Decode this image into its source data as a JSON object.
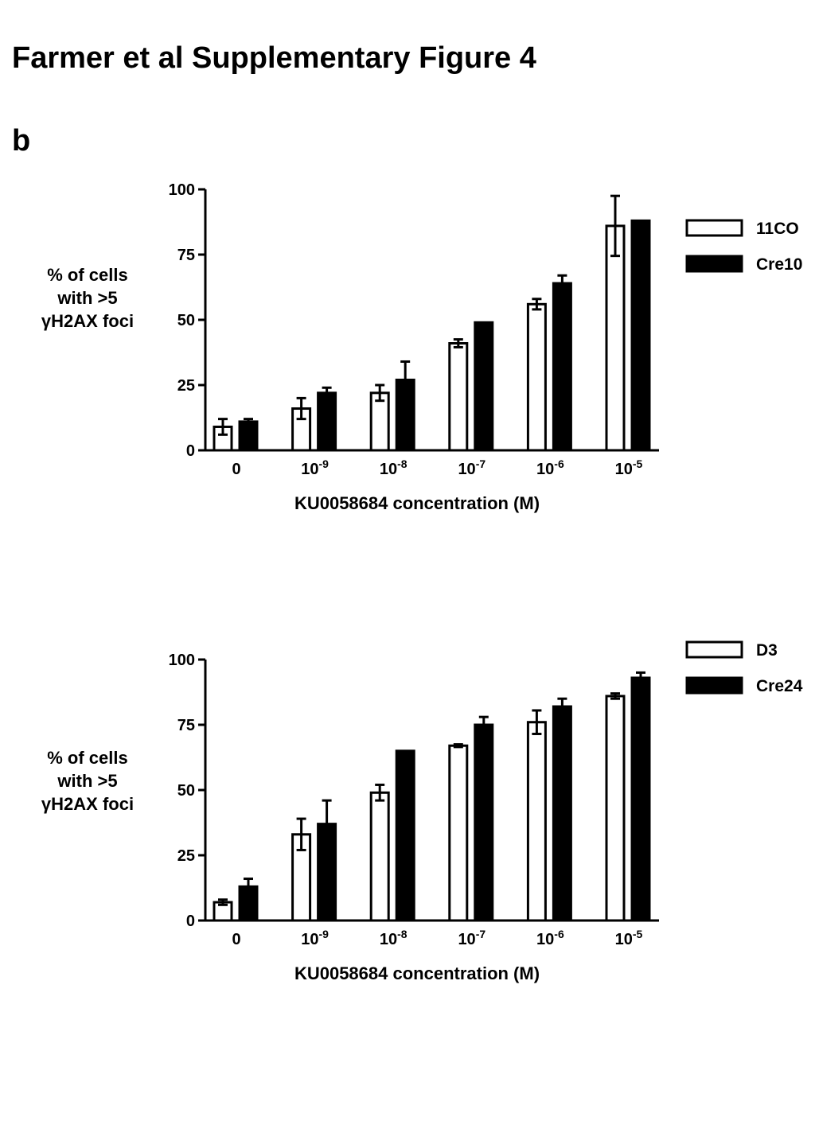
{
  "header": {
    "title": "Farmer et al Supplementary Figure 4",
    "panel_label": "b"
  },
  "chart_data": [
    {
      "type": "bar",
      "title": "",
      "xlabel": "KU0058684 concentration (M)",
      "ylabel_lines": [
        "% of cells",
        "with >5",
        "γH2AX foci"
      ],
      "ylim": [
        0,
        100
      ],
      "yticks": [
        0,
        25,
        50,
        75,
        100
      ],
      "categories": [
        {
          "base": "0",
          "exp": ""
        },
        {
          "base": "10",
          "exp": "-9"
        },
        {
          "base": "10",
          "exp": "-8"
        },
        {
          "base": "10",
          "exp": "-7"
        },
        {
          "base": "10",
          "exp": "-6"
        },
        {
          "base": "10",
          "exp": "-5"
        }
      ],
      "legend_position": "right",
      "series": [
        {
          "name": "11CO",
          "fill": "#ffffff",
          "values": [
            9,
            16,
            22,
            41,
            56,
            86
          ],
          "errors": [
            3,
            4,
            3,
            1.5,
            2,
            11.5
          ]
        },
        {
          "name": "Cre10",
          "fill": "#000000",
          "values": [
            11,
            22,
            27,
            49,
            64,
            88
          ],
          "errors": [
            1,
            2,
            7,
            0,
            3,
            0
          ]
        }
      ]
    },
    {
      "type": "bar",
      "title": "",
      "xlabel": "KU0058684 concentration (M)",
      "ylabel_lines": [
        "% of cells",
        "with >5",
        "γH2AX foci"
      ],
      "ylim": [
        0,
        100
      ],
      "yticks": [
        0,
        25,
        50,
        75,
        100
      ],
      "categories": [
        {
          "base": "0",
          "exp": ""
        },
        {
          "base": "10",
          "exp": "-9"
        },
        {
          "base": "10",
          "exp": "-8"
        },
        {
          "base": "10",
          "exp": "-7"
        },
        {
          "base": "10",
          "exp": "-6"
        },
        {
          "base": "10",
          "exp": "-5"
        }
      ],
      "legend_position": "right",
      "series": [
        {
          "name": "D3",
          "fill": "#ffffff",
          "values": [
            7,
            33,
            49,
            67,
            76,
            86
          ],
          "errors": [
            1,
            6,
            3,
            0.5,
            4.5,
            1
          ]
        },
        {
          "name": "Cre24",
          "fill": "#000000",
          "values": [
            13,
            37,
            65,
            75,
            82,
            93
          ],
          "errors": [
            3,
            9,
            0,
            3,
            3,
            2
          ]
        }
      ]
    }
  ]
}
